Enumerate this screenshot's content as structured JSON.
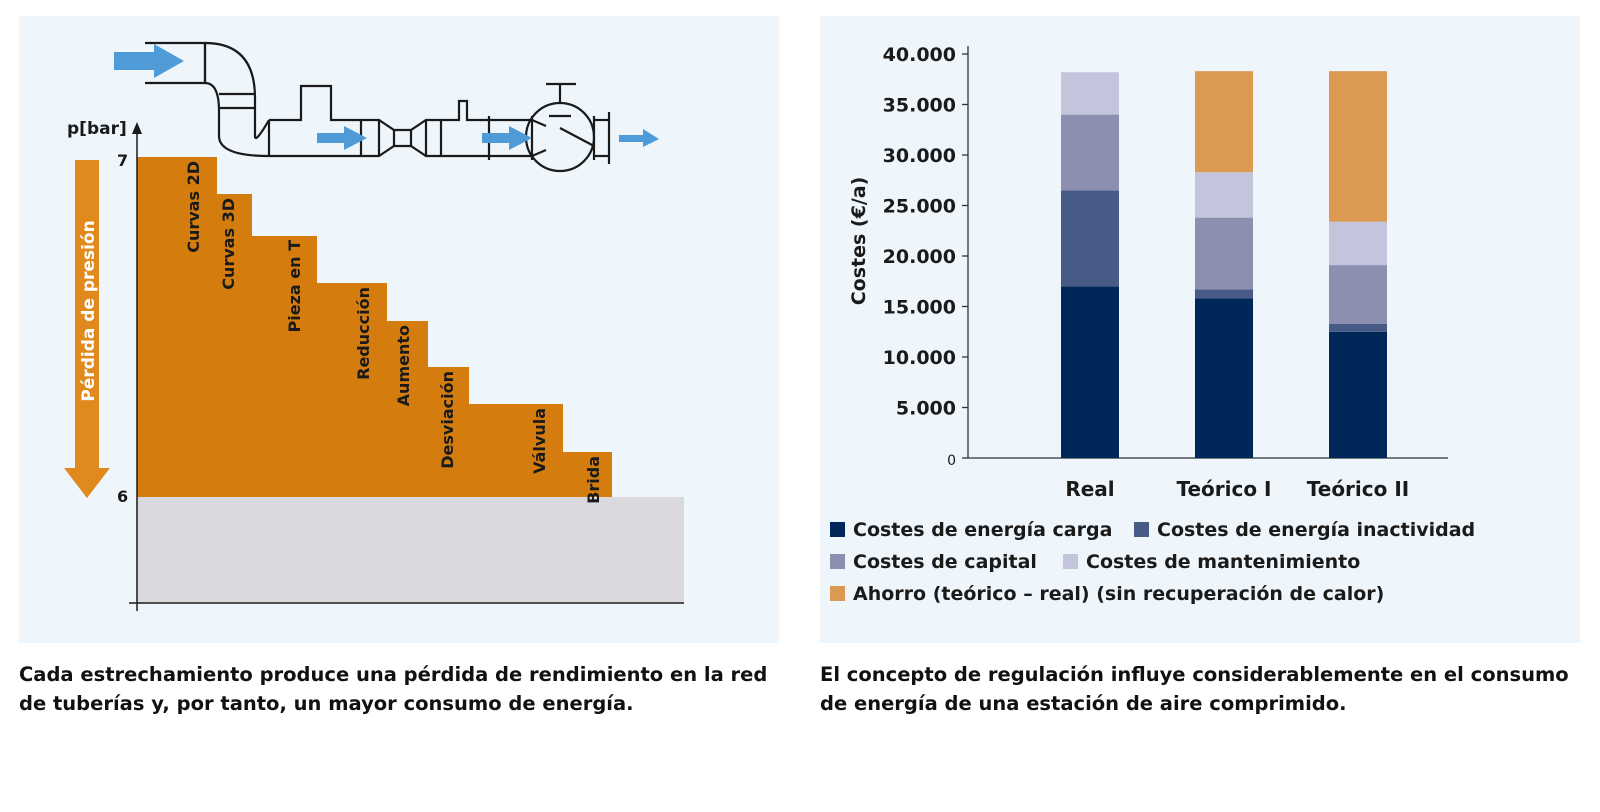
{
  "left_figure": {
    "y_axis_label": "p[bar]",
    "y_tick_top": "7",
    "y_tick_bottom": "6",
    "arrow_label": "Pérdida de presión",
    "steps": [
      {
        "label": "Curvas 2D"
      },
      {
        "label": "Curvas 3D"
      },
      {
        "label": "Pieza en T"
      },
      {
        "label": "Reducción"
      },
      {
        "label": "Aumento"
      },
      {
        "label": "Desviación"
      },
      {
        "label": "Válvula"
      },
      {
        "label": "Brida"
      }
    ],
    "caption": "Cada estrechamiento produce una pérdida de rendimiento en la red de tuberías y, por tanto, un mayor consumo de energía.",
    "colors": {
      "steps": "#d47c0e",
      "base": "#d9d9de",
      "arrow": "#e08a1e",
      "flow": "#4f9bd7"
    }
  },
  "chart_data": {
    "type": "bar",
    "stacked": true,
    "categories": [
      "Real",
      "Teórico I",
      "Teórico II"
    ],
    "ylabel": "Costes (€/a)",
    "xlabel": "",
    "ylim": [
      0,
      40000
    ],
    "yticks": [
      0,
      5000,
      10000,
      15000,
      20000,
      25000,
      30000,
      35000,
      40000
    ],
    "ytick_labels": [
      "0",
      "5.000",
      "10.000",
      "15.000",
      "20.000",
      "25.000",
      "30.000",
      "35.000",
      "40.000"
    ],
    "grid": false,
    "legend_position": "bottom",
    "series": [
      {
        "name": "Costes de energía carga",
        "color": "#00275a",
        "values": [
          17000,
          15800,
          12500
        ]
      },
      {
        "name": "Costes de energía inactividad",
        "color": "#485a86",
        "values": [
          9500,
          900,
          800
        ]
      },
      {
        "name": "Costes de capital",
        "color": "#8c8fb0",
        "values": [
          7500,
          7100,
          5800
        ]
      },
      {
        "name": "Costes de mantenimiento",
        "color": "#c4c5dc",
        "values": [
          4200,
          4500,
          4300
        ]
      },
      {
        "name": "Ahorro (teórico – real) (sin recuperación de calor)",
        "color": "#db9952",
        "values": [
          0,
          10000,
          14900
        ]
      }
    ],
    "caption": "El concepto de regulación influye considerablemente en el consumo de energía de una estación de aire comprimido."
  }
}
